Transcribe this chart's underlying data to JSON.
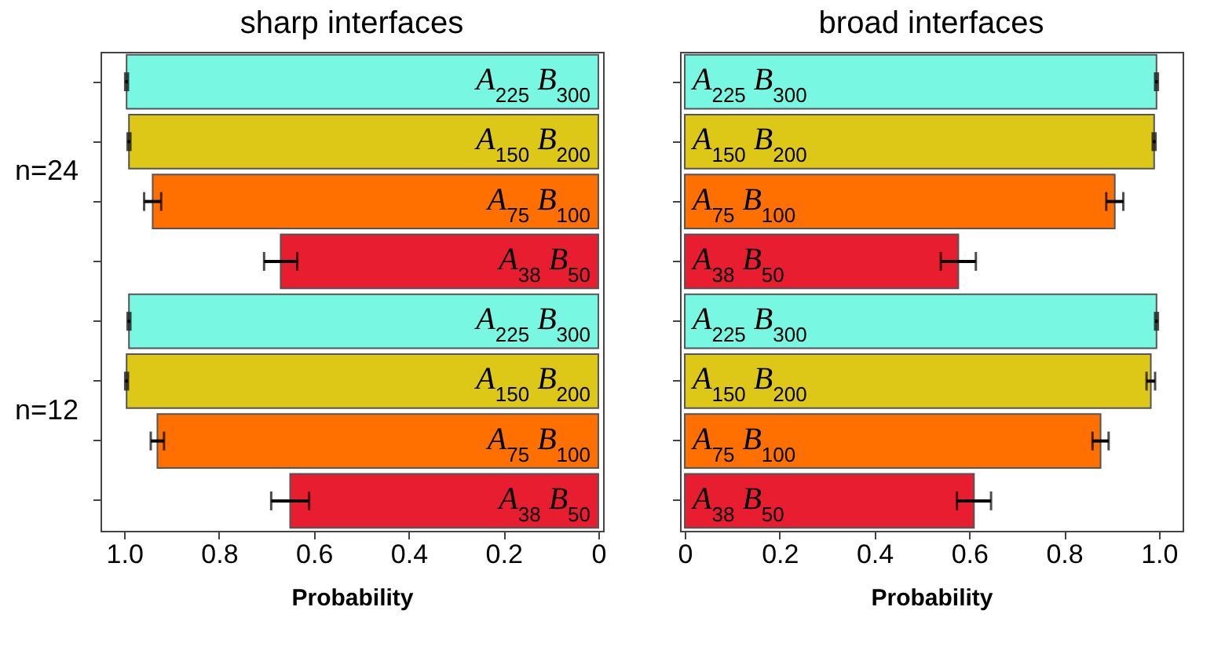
{
  "chart_data": [
    {
      "type": "bar",
      "orientation": "horizontal",
      "title": "sharp interfaces",
      "xlabel": "Probability",
      "tick_labels": "x",
      "categories": [
        "A$_{225}$ B$_{300}$",
        "A$_{150}$ B$_{200}$",
        "A$_{75}$ B$_{100}$",
        "A$_{38}$ B$_{50}$",
        "A$_{225}$ B$_{300}$",
        "A$_{150}$ B$_{200}$",
        "A$_{75}$ B$_{100}$",
        "A$_{38}$ B$_{50}$"
      ],
      "values": [
        0.995,
        0.99,
        0.94,
        0.67,
        0.99,
        0.995,
        0.93,
        0.65
      ],
      "errors": [
        0.003,
        0.003,
        0.018,
        0.035,
        0.003,
        0.003,
        0.014,
        0.04
      ],
      "colors": [
        "#78f8e2",
        "#ddc818",
        "#ff7000",
        "#e81e30",
        "#78f8e2",
        "#ddc818",
        "#ff7000",
        "#e81e30"
      ],
      "xlim": [
        1.05,
        -0.01
      ],
      "xticks": [
        {
          "value": 1,
          "label": "1.0"
        },
        0.8,
        0.6,
        0.4,
        0.2,
        0
      ],
      "annotations": [
        "n=24",
        "n=12"
      ]
    },
    {
      "type": "bar",
      "orientation": "horizontal",
      "title": "broad interfaces",
      "xlabel": "Probability",
      "tick_labels": "x",
      "categories": [
        "A$_{225}$ B$_{300}$",
        "A$_{150}$ B$_{200}$",
        "A$_{75}$ B$_{100}$",
        "A$_{38}$ B$_{50}$",
        "A$_{225}$ B$_{300}$",
        "A$_{150}$ B$_{200}$",
        "A$_{75}$ B$_{100}$",
        "A$_{38}$ B$_{50}$"
      ],
      "values": [
        0.995,
        0.99,
        0.907,
        0.577,
        0.995,
        0.983,
        0.877,
        0.61
      ],
      "errors": [
        0.003,
        0.003,
        0.018,
        0.037,
        0.003,
        0.009,
        0.017,
        0.036
      ],
      "colors": [
        "#78f8e2",
        "#ddc818",
        "#ff7000",
        "#e81e30",
        "#78f8e2",
        "#ddc818",
        "#ff7000",
        "#e81e30"
      ],
      "xlim": [
        -0.01,
        1.05
      ],
      "xticks": [
        0,
        0.2,
        0.4,
        0.6,
        0.8,
        {
          "value": 1,
          "label": "1.0"
        }
      ]
    }
  ]
}
